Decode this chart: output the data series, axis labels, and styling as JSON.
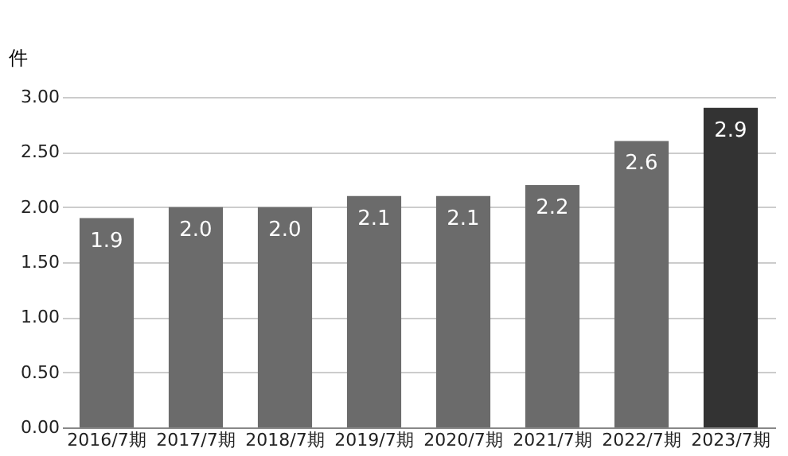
{
  "chart_data": {
    "type": "bar",
    "ylabel": "件",
    "categories": [
      "2016/7期",
      "2017/7期",
      "2018/7期",
      "2019/7期",
      "2020/7期",
      "2021/7期",
      "2022/7期",
      "2023/7期"
    ],
    "values": [
      1.9,
      2.0,
      2.0,
      2.1,
      2.1,
      2.2,
      2.6,
      2.9
    ],
    "value_labels": [
      "1.9",
      "2.0",
      "2.0",
      "2.1",
      "2.1",
      "2.2",
      "2.6",
      "2.9"
    ],
    "colors": [
      "#6b6b6b",
      "#6b6b6b",
      "#6b6b6b",
      "#6b6b6b",
      "#6b6b6b",
      "#6b6b6b",
      "#6b6b6b",
      "#333333"
    ],
    "ylim": [
      0,
      3
    ],
    "yticks": [
      {
        "value": 0,
        "label": "0.00"
      },
      {
        "value": 0.5,
        "label": "0.50"
      },
      {
        "value": 1,
        "label": "1.00"
      },
      {
        "value": 1.5,
        "label": "1.50"
      },
      {
        "value": 2,
        "label": "2.00"
      },
      {
        "value": 2.5,
        "label": "2.50"
      },
      {
        "value": 3,
        "label": "3.00"
      }
    ],
    "grid": "y"
  }
}
